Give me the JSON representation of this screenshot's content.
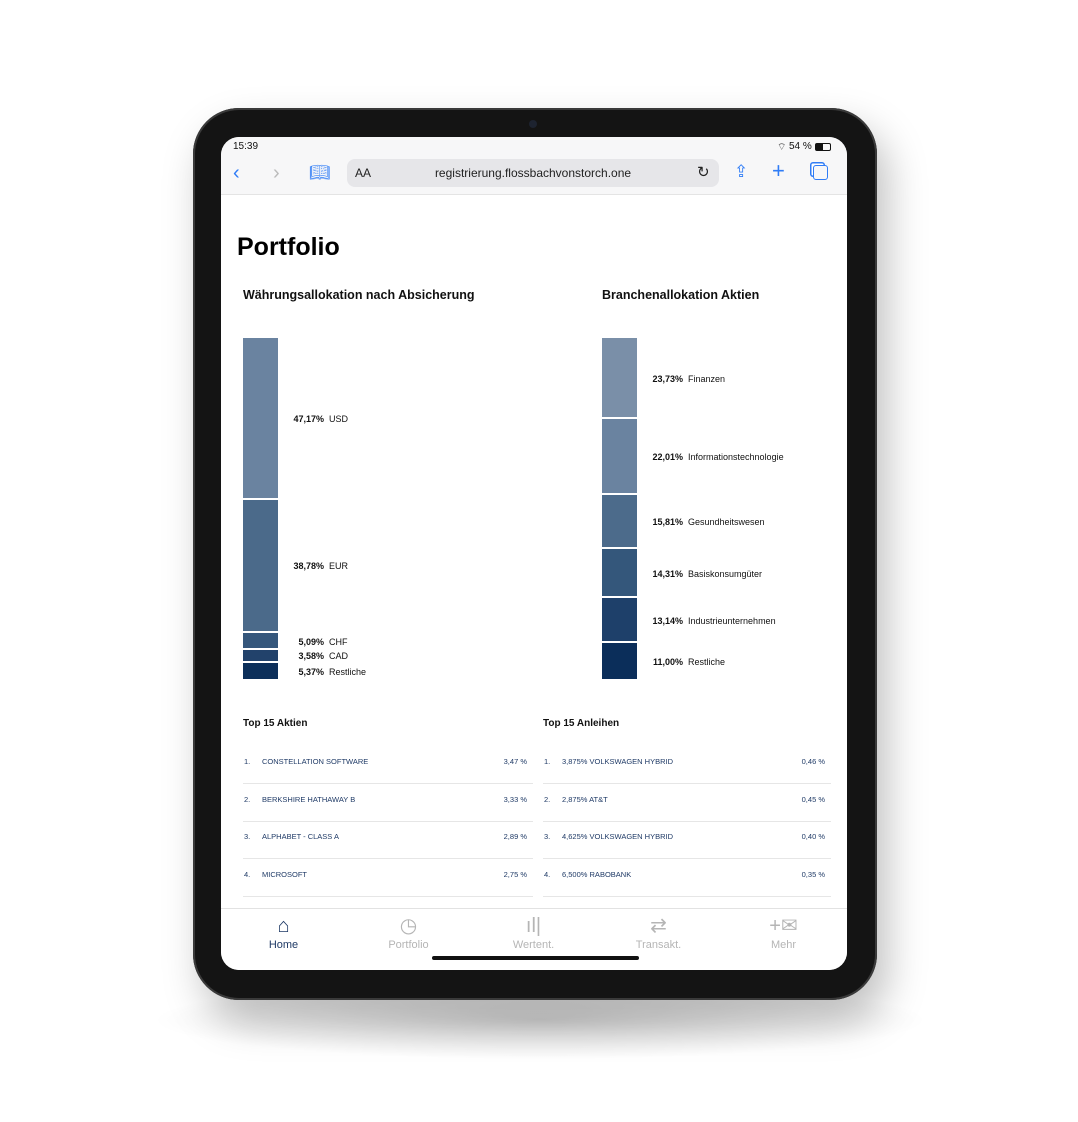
{
  "status": {
    "time": "15:39",
    "battery": "54 %"
  },
  "browser": {
    "text_size": "AA",
    "url": "registrierung.flossbachvonstorch.one"
  },
  "page": {
    "title": "Portfolio"
  },
  "currency": {
    "title": "Währungsallokation nach Absicherung",
    "segments": [
      {
        "pct": "47,17%",
        "value": 47.17,
        "label": "USD",
        "color": "#6a83a0"
      },
      {
        "pct": "38,78%",
        "value": 38.78,
        "label": "EUR",
        "color": "#4b6a8a"
      },
      {
        "pct": "5,09%",
        "value": 5.09,
        "label": "CHF",
        "color": "#35577c"
      },
      {
        "pct": "3,58%",
        "value": 3.58,
        "label": "CAD",
        "color": "#22426b"
      },
      {
        "pct": "5,37%",
        "value": 5.37,
        "label": "Restliche",
        "color": "#0c2f5a"
      }
    ]
  },
  "sector": {
    "title": "Branchenallokation Aktien",
    "segments": [
      {
        "pct": "23,73%",
        "value": 23.73,
        "label": "Finanzen",
        "color": "#7a8fa8"
      },
      {
        "pct": "22,01%",
        "value": 22.01,
        "label": "Informationstechnologie",
        "color": "#6a83a0"
      },
      {
        "pct": "15,81%",
        "value": 15.81,
        "label": "Gesundheitswesen",
        "color": "#4c6b8b"
      },
      {
        "pct": "14,31%",
        "value": 14.31,
        "label": "Basiskonsumgüter",
        "color": "#34577b"
      },
      {
        "pct": "13,14%",
        "value": 13.14,
        "label": "Industrieunternehmen",
        "color": "#1e406a"
      },
      {
        "pct": "11,00%",
        "value": 11.0,
        "label": "Restliche",
        "color": "#0b2e5a"
      }
    ]
  },
  "stocks": {
    "title": "Top 15 Aktien",
    "items": [
      {
        "rank": "1.",
        "name": "CONSTELLATION SOFTWARE",
        "pct": "3,47 %"
      },
      {
        "rank": "2.",
        "name": "BERKSHIRE HATHAWAY B",
        "pct": "3,33 %"
      },
      {
        "rank": "3.",
        "name": "ALPHABET - CLASS A",
        "pct": "2,89 %"
      },
      {
        "rank": "4.",
        "name": "MICROSOFT",
        "pct": "2,75 %"
      }
    ]
  },
  "bonds": {
    "title": "Top 15 Anleihen",
    "items": [
      {
        "rank": "1.",
        "name": "3,875% VOLKSWAGEN HYBRID",
        "pct": "0,46 %"
      },
      {
        "rank": "2.",
        "name": "2,875% AT&T",
        "pct": "0,45 %"
      },
      {
        "rank": "3.",
        "name": "4,625% VOLKSWAGEN HYBRID",
        "pct": "0,40 %"
      },
      {
        "rank": "4.",
        "name": "6,500% RABOBANK",
        "pct": "0,35 %"
      }
    ]
  },
  "tabs": [
    {
      "label": "Home",
      "icon": "home-icon",
      "active": true
    },
    {
      "label": "Portfolio",
      "icon": "pie-chart-icon"
    },
    {
      "label": "Wertent.",
      "icon": "bar-chart-icon"
    },
    {
      "label": "Transakt.",
      "icon": "arrows-icon"
    },
    {
      "label": "Mehr",
      "icon": "plus-mail-icon"
    }
  ],
  "colors": {
    "accent": "#2f7cf6",
    "navy": "#0c2f5a",
    "active_tab": "#1f3a66"
  }
}
